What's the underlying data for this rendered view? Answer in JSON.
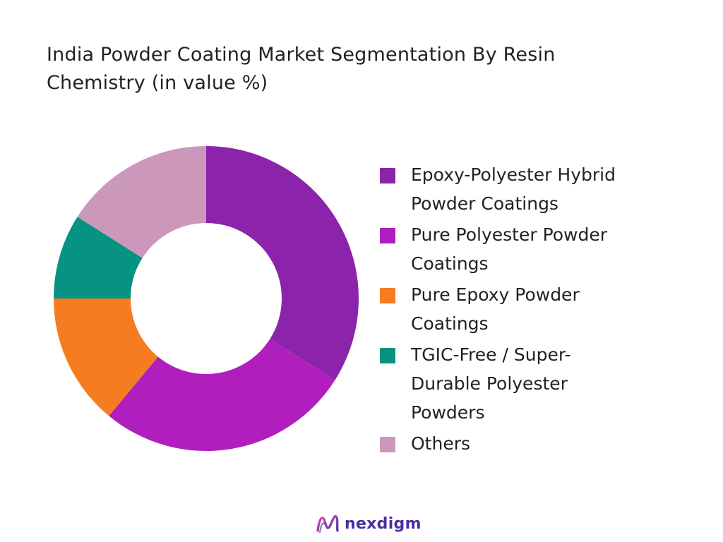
{
  "title": "India Powder Coating Market Segmentation By Resin Chemistry (in value %)",
  "brand": {
    "name": "nexdigm",
    "icon": "nexdigm-logo-icon"
  },
  "chart_data": {
    "type": "pie",
    "donut": true,
    "title": "India Powder Coating Market Segmentation By Resin Chemistry (in value %)",
    "legend_position": "right",
    "categories": [
      "Epoxy-Polyester Hybrid Powder Coatings",
      "Pure Polyester Powder Coatings",
      "Pure Epoxy Powder Coatings",
      "TGIC-Free / Super-Durable Polyester Powders",
      "Others"
    ],
    "legend_labels": [
      "Epoxy-Polyester Hybrid\nPowder Coatings",
      " Pure Polyester Powder\n Coatings",
      " Pure Epoxy Powder\n Coatings",
      "TGIC-Free / Super-\nDurable Polyester\nPowders",
      "Others"
    ],
    "values": [
      34,
      27,
      14,
      9,
      16
    ],
    "colors": [
      "#8b24ab",
      "#b01ebd",
      "#f57c20",
      "#079383",
      "#cb97bb"
    ],
    "start_angle_deg": 0,
    "direction": "clockwise"
  }
}
